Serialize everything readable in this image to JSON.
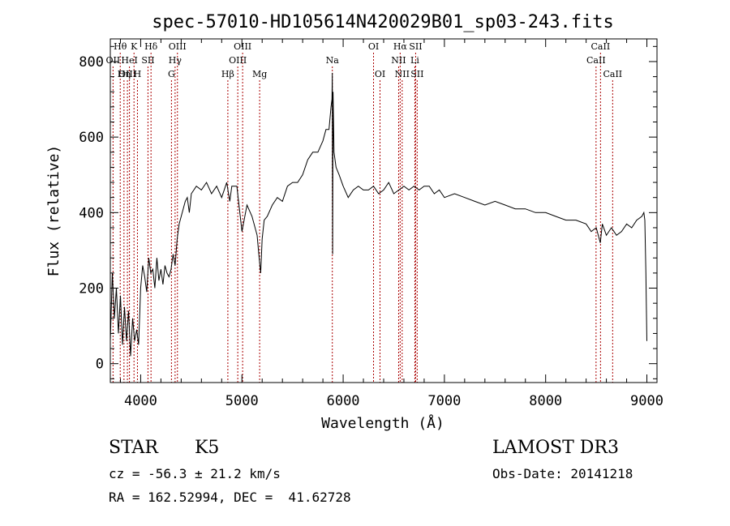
{
  "chart_data": {
    "type": "line",
    "title": "spec-57010-HD105614N420029B01_sp03-243.fits",
    "xlabel": "Wavelength (Å)",
    "ylabel": "Flux (relative)",
    "xlim": [
      3700,
      9100
    ],
    "ylim": [
      -50,
      860
    ],
    "x_ticks": [
      4000,
      5000,
      6000,
      7000,
      8000,
      9000
    ],
    "y_ticks": [
      0,
      200,
      400,
      600,
      800
    ],
    "grid": false,
    "line_color": "#000000",
    "marker_color": "#aa0000",
    "spectrum": {
      "x": [
        3700,
        3720,
        3740,
        3760,
        3780,
        3800,
        3820,
        3840,
        3860,
        3880,
        3900,
        3920,
        3940,
        3960,
        3980,
        4000,
        4020,
        4040,
        4060,
        4080,
        4100,
        4120,
        4140,
        4160,
        4180,
        4200,
        4220,
        4240,
        4260,
        4280,
        4300,
        4320,
        4340,
        4360,
        4380,
        4400,
        4420,
        4440,
        4460,
        4480,
        4500,
        4550,
        4600,
        4650,
        4700,
        4750,
        4800,
        4850,
        4880,
        4900,
        4950,
        5000,
        5050,
        5100,
        5150,
        5170,
        5185,
        5200,
        5220,
        5250,
        5300,
        5350,
        5400,
        5450,
        5500,
        5550,
        5600,
        5650,
        5700,
        5750,
        5800,
        5830,
        5860,
        5880,
        5890,
        5893,
        5896,
        5900,
        5910,
        5930,
        5960,
        6000,
        6050,
        6100,
        6150,
        6200,
        6250,
        6300,
        6350,
        6400,
        6450,
        6500,
        6550,
        6600,
        6650,
        6700,
        6750,
        6800,
        6850,
        6900,
        6950,
        7000,
        7100,
        7200,
        7300,
        7400,
        7500,
        7600,
        7700,
        7800,
        7900,
        8000,
        8100,
        8200,
        8300,
        8400,
        8450,
        8500,
        8540,
        8560,
        8600,
        8650,
        8700,
        8750,
        8800,
        8850,
        8900,
        8950,
        8970,
        8980,
        8990,
        9000
      ],
      "y": [
        60,
        240,
        120,
        200,
        80,
        180,
        50,
        150,
        60,
        140,
        20,
        120,
        60,
        90,
        50,
        200,
        260,
        230,
        190,
        280,
        240,
        250,
        200,
        280,
        220,
        250,
        210,
        260,
        240,
        230,
        250,
        290,
        260,
        330,
        370,
        390,
        410,
        430,
        440,
        400,
        450,
        470,
        460,
        480,
        450,
        470,
        440,
        480,
        430,
        470,
        470,
        350,
        420,
        390,
        340,
        280,
        240,
        330,
        380,
        390,
        420,
        440,
        430,
        470,
        480,
        480,
        500,
        540,
        560,
        560,
        590,
        620,
        620,
        680,
        700,
        770,
        290,
        720,
        560,
        520,
        500,
        470,
        440,
        460,
        470,
        460,
        460,
        470,
        450,
        460,
        480,
        450,
        460,
        470,
        460,
        470,
        460,
        470,
        470,
        450,
        460,
        440,
        450,
        440,
        430,
        420,
        430,
        420,
        410,
        410,
        400,
        400,
        390,
        380,
        380,
        370,
        350,
        360,
        320,
        370,
        340,
        360,
        340,
        350,
        370,
        360,
        380,
        390,
        400,
        380,
        240,
        60
      ]
    },
    "lines": [
      {
        "label": "Hθ",
        "x": 3798,
        "row": 0
      },
      {
        "label": "OII",
        "x": 3727,
        "row": 1
      },
      {
        "label": "OIII",
        "x": 3869,
        "row": 2
      },
      {
        "label": "HeI",
        "x": 3889,
        "row": 1
      },
      {
        "label": "Hη",
        "x": 3835,
        "row": 2
      },
      {
        "label": "K",
        "x": 3934,
        "row": 0
      },
      {
        "label": "H",
        "x": 3968,
        "row": 2
      },
      {
        "label": "SII",
        "x": 4072,
        "row": 1
      },
      {
        "label": "Hδ",
        "x": 4102,
        "row": 0
      },
      {
        "label": "OIII",
        "x": 4363,
        "row": 0
      },
      {
        "label": "Hγ",
        "x": 4340,
        "row": 1
      },
      {
        "label": "G",
        "x": 4304,
        "row": 2
      },
      {
        "label": "OIII",
        "x": 5007,
        "row": 0
      },
      {
        "label": "OIII",
        "x": 4959,
        "row": 1
      },
      {
        "label": "Hβ",
        "x": 4861,
        "row": 2
      },
      {
        "label": "Mg",
        "x": 5175,
        "row": 2
      },
      {
        "label": "Na",
        "x": 5893,
        "row": 1
      },
      {
        "label": "OI",
        "x": 6300,
        "row": 0
      },
      {
        "label": "OI",
        "x": 6364,
        "row": 2
      },
      {
        "label": "Hα",
        "x": 6563,
        "row": 0
      },
      {
        "label": "SII",
        "x": 6716,
        "row": 0
      },
      {
        "label": "NII",
        "x": 6548,
        "row": 1
      },
      {
        "label": "Li",
        "x": 6708,
        "row": 1
      },
      {
        "label": "NII",
        "x": 6583,
        "row": 2
      },
      {
        "label": "SII",
        "x": 6731,
        "row": 2
      },
      {
        "label": "CaII",
        "x": 8542,
        "row": 0
      },
      {
        "label": "CaII",
        "x": 8498,
        "row": 1
      },
      {
        "label": "CaII",
        "x": 8662,
        "row": 2
      }
    ]
  },
  "info": {
    "object_class": "STAR",
    "subclass": "K5",
    "survey": "LAMOST DR3",
    "cz": "cz = -56.3 ± 21.2 km/s",
    "obs_date": "Obs-Date: 20141218",
    "coords": "RA = 162.52994, DEC =  41.62728"
  }
}
